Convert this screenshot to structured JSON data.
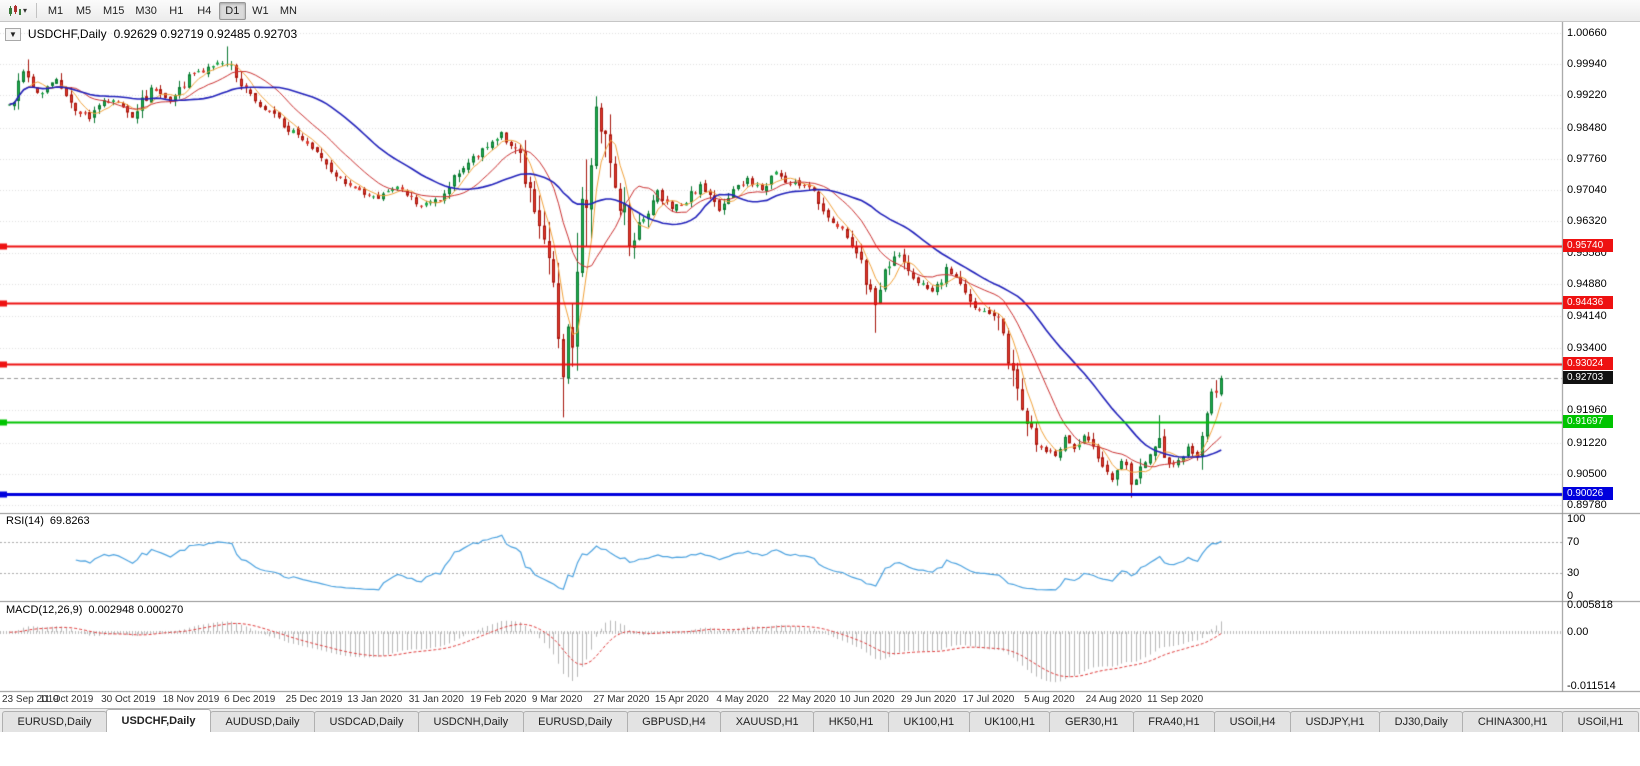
{
  "toolbar": {
    "timeframes": [
      {
        "label": "M1",
        "active": false
      },
      {
        "label": "M5",
        "active": false
      },
      {
        "label": "M15",
        "active": false
      },
      {
        "label": "M30",
        "active": false
      },
      {
        "label": "H1",
        "active": false
      },
      {
        "label": "H4",
        "active": false
      },
      {
        "label": "D1",
        "active": true
      },
      {
        "label": "W1",
        "active": false
      },
      {
        "label": "MN",
        "active": false
      }
    ]
  },
  "chart": {
    "symbol_title": "USDCHF,Daily",
    "ohlc": "0.92629 0.92719 0.92485 0.92703",
    "current_price": "0.92703",
    "price_scale_labels": [
      "1.00660",
      "0.99940",
      "0.99220",
      "0.98480",
      "0.97760",
      "0.97040",
      "0.96320",
      "0.95580",
      "0.94880",
      "0.94140",
      "0.93400",
      "0.91960",
      "0.91220",
      "0.90500",
      "0.89780"
    ],
    "hlines": [
      {
        "price": 0.9574,
        "label": "0.95740",
        "color": "#ee1111",
        "width": 2
      },
      {
        "price": 0.94436,
        "label": "0.94436",
        "color": "#ee1111",
        "width": 2
      },
      {
        "price": 0.93024,
        "label": "0.93024",
        "color": "#ee1111",
        "width": 2
      },
      {
        "price": 0.91697,
        "label": "0.91697",
        "color": "#00c400",
        "width": 2
      },
      {
        "price": 0.90026,
        "label": "0.90026",
        "color": "#0000dd",
        "width": 3
      }
    ],
    "dates": [
      "23 Sep 2019",
      "11 Oct 2019",
      "30 Oct 2019",
      "18 Nov 2019",
      "6 Dec 2019",
      "25 Dec 2019",
      "13 Jan 2020",
      "31 Jan 2020",
      "19 Feb 2020",
      "9 Mar 2020",
      "27 Mar 2020",
      "15 Apr 2020",
      "4 May 2020",
      "22 May 2020",
      "10 Jun 2020",
      "29 Jun 2020",
      "17 Jul 2020",
      "5 Aug 2020",
      "24 Aug 2020",
      "11 Sep 2020"
    ]
  },
  "rsi_panel": {
    "name": "RSI(14)",
    "value": "69.8263",
    "scale": [
      "100",
      "70",
      "30",
      "0"
    ],
    "line_color": "#4da3e0"
  },
  "macd_panel": {
    "name": "MACD(12,26,9)",
    "values": "0.002948 0.000270",
    "scale_top": "0.005818",
    "scale_zero": "0.00",
    "scale_bottom": "-0.011514"
  },
  "tabs": [
    {
      "label": "EURUSD,Daily",
      "active": false
    },
    {
      "label": "USDCHF,Daily",
      "active": true
    },
    {
      "label": "AUDUSD,Daily",
      "active": false
    },
    {
      "label": "USDCAD,Daily",
      "active": false
    },
    {
      "label": "USDCNH,Daily",
      "active": false
    },
    {
      "label": "EURUSD,Daily",
      "active": false
    },
    {
      "label": "GBPUSD,H4",
      "active": false
    },
    {
      "label": "XAUUSD,H1",
      "active": false
    },
    {
      "label": "HK50,H1",
      "active": false
    },
    {
      "label": "UK100,H1",
      "active": false
    },
    {
      "label": "UK100,H1",
      "active": false
    },
    {
      "label": "GER30,H1",
      "active": false
    },
    {
      "label": "FRA40,H1",
      "active": false
    },
    {
      "label": "USOil,H4",
      "active": false
    },
    {
      "label": "USDJPY,H1",
      "active": false
    },
    {
      "label": "DJ30,Daily",
      "active": false
    },
    {
      "label": "CHINA300,H1",
      "active": false
    },
    {
      "label": "USOil,H1",
      "active": false
    }
  ],
  "chart_data": {
    "type": "candlestick",
    "symbol": "USDCHF",
    "timeframe": "Daily",
    "ohlc_current": {
      "open": 0.92629,
      "high": 0.92719,
      "low": 0.92485,
      "close": 0.92703
    },
    "x_range": [
      "23 Sep 2019",
      "25 Sep 2020"
    ],
    "num_candles": 257,
    "candles_per_label": 13,
    "price_axis": {
      "top_price": 1.0066,
      "bottom_price": 0.8978
    },
    "anchors": [
      [
        0,
        0.99
      ],
      [
        3,
        0.998
      ],
      [
        6,
        0.9925
      ],
      [
        10,
        0.9965
      ],
      [
        14,
        0.9895
      ],
      [
        17,
        0.9865
      ],
      [
        20,
        0.9915
      ],
      [
        24,
        0.9895
      ],
      [
        26,
        0.9865
      ],
      [
        30,
        0.9945
      ],
      [
        34,
        0.9905
      ],
      [
        38,
        0.9965
      ],
      [
        42,
        0.9985
      ],
      [
        46,
        1.0
      ],
      [
        50,
        0.993
      ],
      [
        55,
        0.9885
      ],
      [
        60,
        0.9835
      ],
      [
        65,
        0.979
      ],
      [
        70,
        0.9725
      ],
      [
        75,
        0.97
      ],
      [
        78,
        0.968
      ],
      [
        82,
        0.9715
      ],
      [
        86,
        0.967
      ],
      [
        91,
        0.968
      ],
      [
        95,
        0.9745
      ],
      [
        100,
        0.9795
      ],
      [
        104,
        0.984
      ],
      [
        108,
        0.978
      ],
      [
        110,
        0.97
      ],
      [
        112,
        0.962
      ],
      [
        114,
        0.952
      ],
      [
        116,
        0.938
      ],
      [
        117,
        0.926
      ],
      [
        118,
        0.933
      ],
      [
        119,
        0.942
      ],
      [
        120,
        0.953
      ],
      [
        121,
        0.962
      ],
      [
        122,
        0.973
      ],
      [
        124,
        0.99
      ],
      [
        126,
        0.98
      ],
      [
        128,
        0.968
      ],
      [
        130,
        0.964
      ],
      [
        131,
        0.956
      ],
      [
        134,
        0.964
      ],
      [
        137,
        0.97
      ],
      [
        140,
        0.966
      ],
      [
        143,
        0.968
      ],
      [
        146,
        0.972
      ],
      [
        150,
        0.966
      ],
      [
        153,
        0.97
      ],
      [
        156,
        0.973
      ],
      [
        159,
        0.97
      ],
      [
        162,
        0.974
      ],
      [
        165,
        0.972
      ],
      [
        169,
        0.971
      ],
      [
        172,
        0.965
      ],
      [
        175,
        0.962
      ],
      [
        178,
        0.959
      ],
      [
        180,
        0.953
      ],
      [
        182,
        0.948
      ],
      [
        183,
        0.944
      ],
      [
        185,
        0.951
      ],
      [
        188,
        0.956
      ],
      [
        191,
        0.95
      ],
      [
        195,
        0.947
      ],
      [
        198,
        0.952
      ],
      [
        201,
        0.948
      ],
      [
        204,
        0.943
      ],
      [
        208,
        0.942
      ],
      [
        210,
        0.936
      ],
      [
        212,
        0.928
      ],
      [
        214,
        0.921
      ],
      [
        216,
        0.915
      ],
      [
        218,
        0.911
      ],
      [
        221,
        0.909
      ],
      [
        223,
        0.913
      ],
      [
        225,
        0.911
      ],
      [
        227,
        0.914
      ],
      [
        229,
        0.91
      ],
      [
        231,
        0.906
      ],
      [
        233,
        0.904
      ],
      [
        235,
        0.908
      ],
      [
        237,
        0.902
      ],
      [
        239,
        0.906
      ],
      [
        241,
        0.91
      ],
      [
        243,
        0.913
      ],
      [
        245,
        0.907
      ],
      [
        247,
        0.908
      ],
      [
        249,
        0.911
      ],
      [
        251,
        0.9095
      ],
      [
        252,
        0.913
      ],
      [
        253,
        0.918
      ],
      [
        254,
        0.9215
      ],
      [
        255,
        0.9245
      ],
      [
        256,
        0.92703
      ]
    ],
    "last_close": 0.92703,
    "wick_overrides": {
      "4": {
        "high": 1.0005
      },
      "46": {
        "high": 1.0035
      },
      "117": {
        "low": 0.918
      },
      "124": {
        "high": 0.992
      },
      "183": {
        "low": 0.9375
      },
      "237": {
        "low": 0.8995
      },
      "243": {
        "high": 0.9185
      }
    },
    "moving_averages": [
      {
        "type": "sma",
        "period": 5,
        "color": "#f2a33c",
        "width": 1
      },
      {
        "type": "sma",
        "period": 13,
        "color": "#cc3333",
        "width": 1
      },
      {
        "type": "sma",
        "period": 30,
        "color": "#2222bb",
        "width": 1.6
      }
    ],
    "indicators": {
      "rsi": {
        "period": 14,
        "levels": [
          70,
          30
        ],
        "current": 69.8263
      },
      "macd": {
        "fast": 12,
        "slow": 26,
        "signal": 9,
        "current": 0.002948,
        "current_signal": 0.00027,
        "scale_max": 0.005818,
        "scale_min": -0.011514
      }
    },
    "colors": {
      "bull": "#1fae4b",
      "bull_border": "#0d7a33",
      "bear": "#e23a2e",
      "bear_border": "#a8170e",
      "grid": "#e0e0e0",
      "histogram": "#b9b9b9",
      "signal": "#e03c3c",
      "separator": "#909090",
      "bid_line": "#999999"
    }
  }
}
